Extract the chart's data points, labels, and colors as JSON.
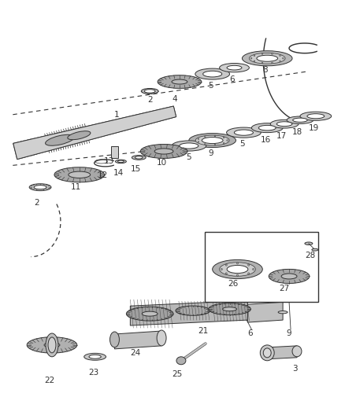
{
  "bg": "#ffffff",
  "lc": "#333333",
  "lw": 0.7,
  "shaft_color": "#c8c8c8",
  "gear_fill": "#b0b0b0",
  "gear_fill2": "#888888",
  "ring_fill": "#d0d0d0",
  "bearing_fill": "#b8b8b8"
}
